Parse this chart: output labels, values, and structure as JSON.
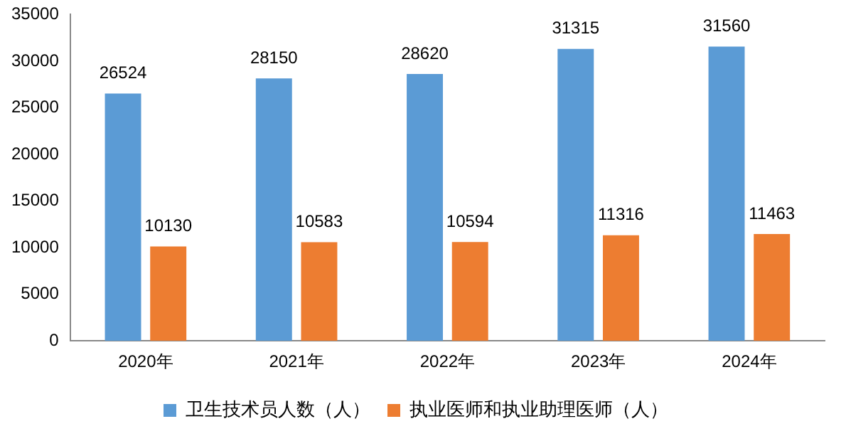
{
  "chart_data": {
    "type": "bar",
    "categories": [
      "2020年",
      "2021年",
      "2022年",
      "2023年",
      "2024年"
    ],
    "series": [
      {
        "name": "卫生技术员人数（人）",
        "color": "#5b9bd5",
        "values": [
          26524,
          28150,
          28620,
          31315,
          31560
        ]
      },
      {
        "name": "执业医师和执业助理医师（人）",
        "color": "#ed7d31",
        "values": [
          10130,
          10583,
          10594,
          11316,
          11463
        ]
      }
    ],
    "ylim": [
      0,
      35000
    ],
    "yticks": [
      0,
      5000,
      10000,
      15000,
      20000,
      25000,
      30000,
      35000
    ],
    "grid": false,
    "legend": "bottom",
    "data_labels": true
  }
}
